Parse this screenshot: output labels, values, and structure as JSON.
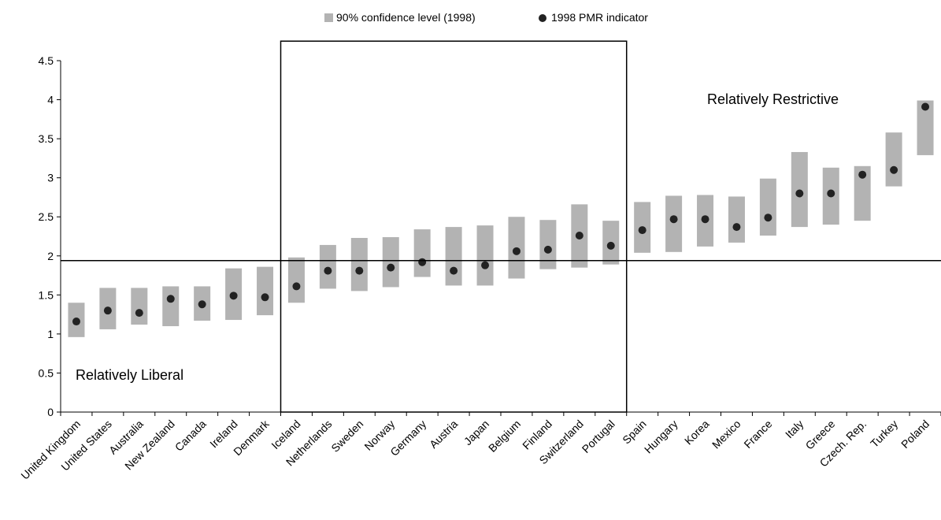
{
  "chart_data": {
    "type": "range-dot",
    "title": "",
    "xlabel": "",
    "ylabel": "",
    "ylim": [
      0,
      4.5
    ],
    "yticks": [
      "0",
      "0.5",
      "1",
      "1.5",
      "2",
      "2.5",
      "3",
      "3.5",
      "4",
      "4.5"
    ],
    "legend": {
      "position": "top",
      "items": [
        {
          "label": "90% confidence level (1998)",
          "marker": "square",
          "color": "#b3b3b3"
        },
        {
          "label": "1998 PMR indicator",
          "marker": "circle",
          "color": "#222222"
        }
      ]
    },
    "categories": [
      "United Kingdom",
      "United States",
      "Australia",
      "New Zealand",
      "Canada",
      "Ireland",
      "Denmark",
      "Iceland",
      "Netherlands",
      "Sweden",
      "Norway",
      "Germany",
      "Austria",
      "Japan",
      "Belgium",
      "Finland",
      "Switzerland",
      "Portugal",
      "Spain",
      "Hungary",
      "Korea",
      "Mexico",
      "France",
      "Italy",
      "Greece",
      "Czech. Rep.",
      "Turkey",
      "Poland"
    ],
    "series": [
      {
        "name": "90% confidence level (1998)",
        "kind": "range",
        "low": [
          0.96,
          1.06,
          1.12,
          1.1,
          1.17,
          1.18,
          1.24,
          1.4,
          1.58,
          1.55,
          1.6,
          1.73,
          1.62,
          1.62,
          1.71,
          1.83,
          1.85,
          1.89,
          2.04,
          2.05,
          2.12,
          2.17,
          2.26,
          2.37,
          2.4,
          2.45,
          2.89,
          3.29
        ],
        "high": [
          1.4,
          1.59,
          1.59,
          1.61,
          1.61,
          1.84,
          1.86,
          1.98,
          2.14,
          2.23,
          2.24,
          2.34,
          2.37,
          2.39,
          2.5,
          2.46,
          2.66,
          2.45,
          2.69,
          2.77,
          2.78,
          2.76,
          2.99,
          3.33,
          3.13,
          3.15,
          3.58,
          3.99
        ]
      },
      {
        "name": "1998 PMR indicator",
        "kind": "point",
        "values": [
          1.16,
          1.3,
          1.27,
          1.45,
          1.38,
          1.49,
          1.47,
          1.61,
          1.81,
          1.81,
          1.85,
          1.92,
          1.81,
          1.88,
          2.06,
          2.08,
          2.26,
          2.13,
          2.33,
          2.47,
          2.47,
          2.37,
          2.49,
          2.8,
          2.8,
          3.04,
          3.1,
          3.91
        ]
      }
    ],
    "reference_line": {
      "value": 1.94
    },
    "regions": [
      {
        "label": "Relatively Liberal",
        "from": "United Kingdom",
        "to": "Denmark"
      },
      {
        "label": "",
        "from": "Iceland",
        "to": "Portugal",
        "ylim": [
          0,
          4.75
        ]
      },
      {
        "label": "Relatively Restrictive",
        "from": "Spain",
        "to": "Poland"
      }
    ]
  }
}
